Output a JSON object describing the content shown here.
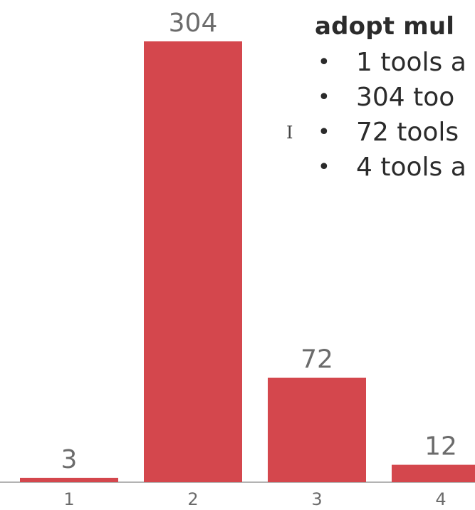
{
  "colors": {
    "bar": "#d4474d",
    "axis": "#9a9a9a",
    "label": "#6b6b6b",
    "text": "#2b2b2b"
  },
  "chart_data": {
    "type": "bar",
    "categories": [
      "1",
      "2",
      "3",
      "4"
    ],
    "values": [
      3,
      304,
      72,
      12
    ],
    "data_labels": [
      "3",
      "304",
      "72",
      "12"
    ],
    "title": "",
    "xlabel": "",
    "ylabel": "",
    "ylim": [
      0,
      304
    ],
    "grid": false,
    "legend": "none"
  },
  "panel": {
    "heading": "adopt mul",
    "bullets": [
      {
        "bullet": "•",
        "text": "1 tools a"
      },
      {
        "bullet": "•",
        "text": "304 too"
      },
      {
        "bullet": "•",
        "text": "72 tools"
      },
      {
        "bullet": "•",
        "text": "4 tools a"
      }
    ]
  },
  "cursor": {
    "icon": "text-ibeam-cursor-icon",
    "glyph": "I"
  }
}
